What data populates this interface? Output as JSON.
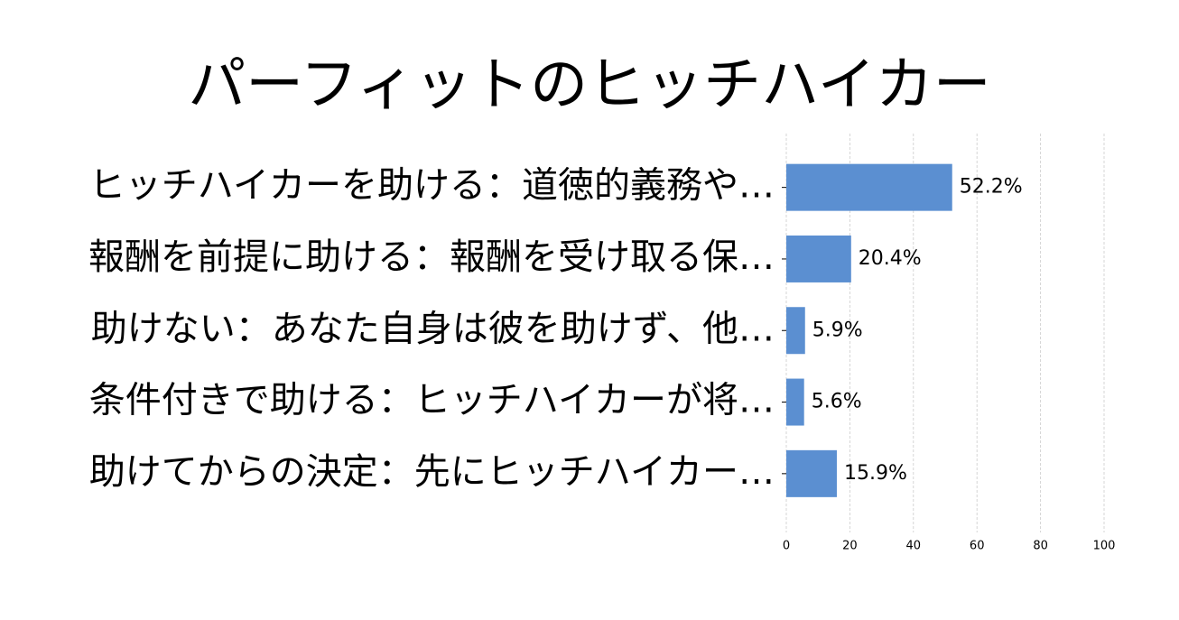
{
  "chart_data": {
    "type": "barh",
    "title": "パーフィットのヒッチハイカー",
    "categories": [
      "ヒッチハイカーを助ける：道徳的義務や…",
      "報酬を前提に助ける：報酬を受け取る保…",
      "助けない：あなた自身は彼を助けず、他…",
      "条件付きで助ける：ヒッチハイカーが将…",
      "助けてからの決定：先にヒッチハイカー…"
    ],
    "values": [
      52.2,
      20.4,
      5.9,
      5.6,
      15.9
    ],
    "value_labels": [
      "52.2%",
      "20.4%",
      "5.9%",
      "5.6%",
      "15.9%"
    ],
    "color": "#5b8fd1",
    "xlim": [
      0,
      100
    ],
    "xticks": [
      0,
      20,
      40,
      60,
      80,
      100
    ],
    "grid": true
  }
}
